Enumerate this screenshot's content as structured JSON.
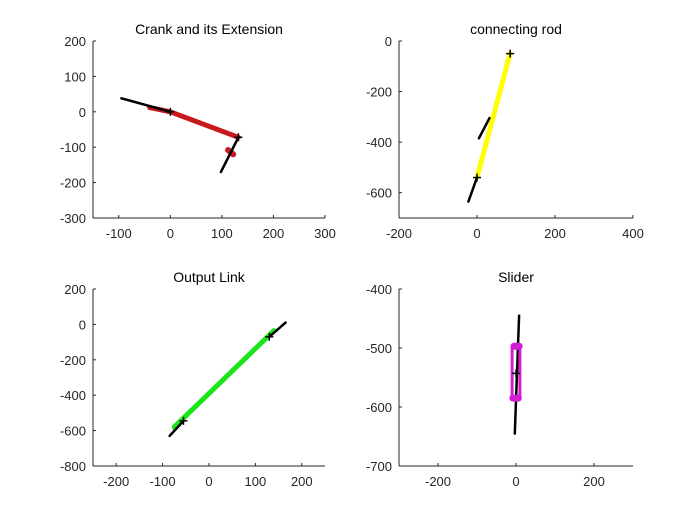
{
  "colors": {
    "background": "#ffffff",
    "axis": "#262626",
    "link": "#000000",
    "crank": "#c8191e",
    "rod": "#ffff00",
    "output": "#19e619",
    "slider": "#d21ed2"
  },
  "chart_data": [
    {
      "type": "line",
      "title": "Crank and its Extension",
      "xlabel": "",
      "ylabel": "",
      "xlim": [
        -150,
        300
      ],
      "ylim": [
        -300,
        200
      ],
      "xticks": [
        -100,
        0,
        100,
        200,
        300
      ],
      "yticks": [
        -300,
        -200,
        -100,
        0,
        100,
        200
      ],
      "grid": false,
      "series": [
        {
          "color": "#c8191e",
          "width": 5,
          "points": [
            [
              -40,
              12
            ],
            [
              0,
              0
            ],
            [
              132,
              -72
            ]
          ]
        },
        {
          "color": "#c8191e",
          "width": 6,
          "points": [
            [
              112,
              -108
            ],
            [
              122,
              -120
            ]
          ]
        },
        {
          "color": "#000000",
          "width": 2.5,
          "points": [
            [
              -95,
              38
            ],
            [
              0,
              0
            ]
          ]
        },
        {
          "color": "#000000",
          "width": 2.5,
          "points": [
            [
              132,
              -72
            ],
            [
              98,
              -170
            ]
          ]
        }
      ],
      "markers": [
        [
          0,
          0
        ],
        [
          132,
          -72
        ]
      ]
    },
    {
      "type": "line",
      "title": "connecting rod",
      "xlabel": "",
      "ylabel": "",
      "xlim": [
        -200,
        400
      ],
      "ylim": [
        -700,
        0
      ],
      "xticks": [
        -200,
        0,
        200,
        400
      ],
      "yticks": [
        -600,
        -400,
        -200,
        0
      ],
      "grid": false,
      "series": [
        {
          "color": "#ffff00",
          "width": 5,
          "points": [
            [
              0,
              -540
            ],
            [
              85,
              -50
            ]
          ]
        },
        {
          "color": "#000000",
          "width": 2.5,
          "points": [
            [
              0,
              -540
            ],
            [
              -22,
              -635
            ]
          ]
        },
        {
          "color": "#000000",
          "width": 2.5,
          "points": [
            [
              5,
              -385
            ],
            [
              32,
              -305
            ]
          ]
        }
      ],
      "markers": [
        [
          85,
          -50
        ],
        [
          0,
          -540
        ]
      ]
    },
    {
      "type": "line",
      "title": "Output Link",
      "xlabel": "",
      "ylabel": "",
      "xlim": [
        -250,
        250
      ],
      "ylim": [
        -800,
        200
      ],
      "xticks": [
        -200,
        -100,
        0,
        100,
        200
      ],
      "yticks": [
        -800,
        -600,
        -400,
        -200,
        0,
        200
      ],
      "grid": false,
      "series": [
        {
          "color": "#19e619",
          "width": 5,
          "points": [
            [
              -75,
              -580
            ],
            [
              140,
              -35
            ]
          ]
        },
        {
          "color": "#000000",
          "width": 2.5,
          "points": [
            [
              -85,
              -630
            ],
            [
              -55,
              -545
            ]
          ]
        },
        {
          "color": "#000000",
          "width": 2.5,
          "points": [
            [
              130,
              -70
            ],
            [
              165,
              10
            ]
          ]
        }
      ],
      "markers": [
        [
          -55,
          -545
        ],
        [
          130,
          -70
        ]
      ]
    },
    {
      "type": "line",
      "title": "Slider",
      "xlabel": "",
      "ylabel": "",
      "xlim": [
        -300,
        300
      ],
      "ylim": [
        -700,
        -400
      ],
      "xticks": [
        -200,
        0,
        200
      ],
      "yticks": [
        -700,
        -600,
        -500,
        -400
      ],
      "grid": false,
      "series": [
        {
          "color": "#000000",
          "width": 2.5,
          "points": [
            [
              -3,
              -645
            ],
            [
              8,
              -445
            ]
          ]
        },
        {
          "color": "#d21ed2",
          "width": 3,
          "closed": true,
          "points": [
            [
              -10,
              -497
            ],
            [
              10,
              -497
            ],
            [
              10,
              -585
            ],
            [
              -10,
              -585
            ]
          ]
        },
        {
          "color": "#d21ed2",
          "width": 7,
          "points": [
            [
              -5,
              -497
            ],
            [
              8,
              -497
            ]
          ]
        },
        {
          "color": "#d21ed2",
          "width": 7,
          "points": [
            [
              -8,
              -585
            ],
            [
              6,
              -585
            ]
          ]
        }
      ],
      "markers": [
        [
          0,
          -543
        ]
      ]
    }
  ]
}
